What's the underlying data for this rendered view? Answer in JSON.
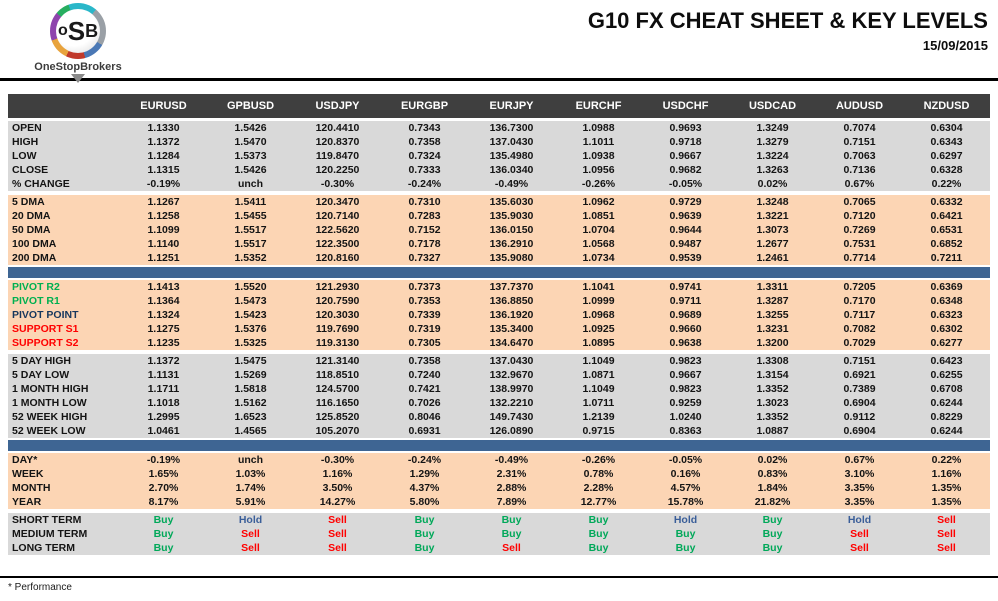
{
  "header": {
    "logo": {
      "circle_o": "o",
      "circle_s": "S",
      "circle_b": "B",
      "brand": "OneStopBrokers"
    },
    "title": "G10 FX CHEAT SHEET & KEY LEVELS",
    "date": "15/09/2015"
  },
  "colors": {
    "header_dark": "#3f3f3f",
    "gray_band": "#d9d9d9",
    "peach_band": "#fcd5b4",
    "blue_bar": "#3e6593",
    "pivot_green": "#00b050",
    "pivot_navy": "#17375d",
    "support_red": "#ff0000",
    "buy_green": "#00a859",
    "sell_red": "#ff0000",
    "hold_blue": "#3a5e99"
  },
  "table": {
    "columns": [
      "EURUSD",
      "GPBUSD",
      "USDJPY",
      "EURGBP",
      "EURJPY",
      "EURCHF",
      "USDCHF",
      "USDCAD",
      "AUDUSD",
      "NZDUSD"
    ],
    "sections": [
      {
        "id": "ohlc",
        "bg": "gray",
        "rows": [
          {
            "label": "OPEN",
            "values": [
              "1.1330",
              "1.5426",
              "120.4410",
              "0.7343",
              "136.7300",
              "1.0988",
              "0.9693",
              "1.3249",
              "0.7074",
              "0.6304"
            ]
          },
          {
            "label": "HIGH",
            "values": [
              "1.1372",
              "1.5470",
              "120.8370",
              "0.7358",
              "137.0430",
              "1.1011",
              "0.9718",
              "1.3279",
              "0.7151",
              "0.6343"
            ]
          },
          {
            "label": "LOW",
            "values": [
              "1.1284",
              "1.5373",
              "119.8470",
              "0.7324",
              "135.4980",
              "1.0938",
              "0.9667",
              "1.3224",
              "0.7063",
              "0.6297"
            ]
          },
          {
            "label": "CLOSE",
            "values": [
              "1.1315",
              "1.5426",
              "120.2250",
              "0.7333",
              "136.0340",
              "1.0956",
              "0.9682",
              "1.3263",
              "0.7136",
              "0.6328"
            ]
          },
          {
            "label": "% CHANGE",
            "values": [
              "-0.19%",
              "unch",
              "-0.30%",
              "-0.24%",
              "-0.49%",
              "-0.26%",
              "-0.05%",
              "0.02%",
              "0.67%",
              "0.22%"
            ]
          }
        ]
      },
      {
        "id": "dma",
        "bg": "peach",
        "rows": [
          {
            "label": "5 DMA",
            "values": [
              "1.1267",
              "1.5411",
              "120.3470",
              "0.7310",
              "135.6030",
              "1.0962",
              "0.9729",
              "1.3248",
              "0.7065",
              "0.6332"
            ]
          },
          {
            "label": "20 DMA",
            "values": [
              "1.1258",
              "1.5455",
              "120.7140",
              "0.7283",
              "135.9030",
              "1.0851",
              "0.9639",
              "1.3221",
              "0.7120",
              "0.6421"
            ]
          },
          {
            "label": "50 DMA",
            "values": [
              "1.1099",
              "1.5517",
              "122.5620",
              "0.7152",
              "136.0150",
              "1.0704",
              "0.9644",
              "1.3073",
              "0.7269",
              "0.6531"
            ]
          },
          {
            "label": "100 DMA",
            "values": [
              "1.1140",
              "1.5517",
              "122.3500",
              "0.7178",
              "136.2910",
              "1.0568",
              "0.9487",
              "1.2677",
              "0.7531",
              "0.6852"
            ]
          },
          {
            "label": "200 DMA",
            "values": [
              "1.1251",
              "1.5352",
              "120.8160",
              "0.7327",
              "135.9080",
              "1.0734",
              "0.9539",
              "1.2461",
              "0.7714",
              "0.7211"
            ]
          }
        ]
      },
      {
        "id": "pivots",
        "bg": "peach",
        "separator_before": "blue",
        "rows": [
          {
            "label": "PIVOT R2",
            "label_color": "pivot_green",
            "values": [
              "1.1413",
              "1.5520",
              "121.2930",
              "0.7373",
              "137.7370",
              "1.1041",
              "0.9741",
              "1.3311",
              "0.7205",
              "0.6369"
            ]
          },
          {
            "label": "PIVOT R1",
            "label_color": "pivot_green",
            "values": [
              "1.1364",
              "1.5473",
              "120.7590",
              "0.7353",
              "136.8850",
              "1.0999",
              "0.9711",
              "1.3287",
              "0.7170",
              "0.6348"
            ]
          },
          {
            "label": "PIVOT POINT",
            "label_color": "pivot_navy",
            "values": [
              "1.1324",
              "1.5423",
              "120.3030",
              "0.7339",
              "136.1920",
              "1.0968",
              "0.9689",
              "1.3255",
              "0.7117",
              "0.6323"
            ]
          },
          {
            "label": "SUPPORT S1",
            "label_color": "support_red",
            "values": [
              "1.1275",
              "1.5376",
              "119.7690",
              "0.7319",
              "135.3400",
              "1.0925",
              "0.9660",
              "1.3231",
              "0.7082",
              "0.6302"
            ]
          },
          {
            "label": "SUPPORT S2",
            "label_color": "support_red",
            "values": [
              "1.1235",
              "1.5325",
              "119.3130",
              "0.7305",
              "134.6470",
              "1.0895",
              "0.9638",
              "1.3200",
              "0.7029",
              "0.6277"
            ]
          }
        ]
      },
      {
        "id": "ranges",
        "bg": "gray",
        "rows": [
          {
            "label": "5 DAY HIGH",
            "values": [
              "1.1372",
              "1.5475",
              "121.3140",
              "0.7358",
              "137.0430",
              "1.1049",
              "0.9823",
              "1.3308",
              "0.7151",
              "0.6423"
            ]
          },
          {
            "label": "5 DAY LOW",
            "values": [
              "1.1131",
              "1.5269",
              "118.8510",
              "0.7240",
              "132.9670",
              "1.0871",
              "0.9667",
              "1.3154",
              "0.6921",
              "0.6255"
            ]
          },
          {
            "label": "1 MONTH HIGH",
            "values": [
              "1.1711",
              "1.5818",
              "124.5700",
              "0.7421",
              "138.9970",
              "1.1049",
              "0.9823",
              "1.3352",
              "0.7389",
              "0.6708"
            ]
          },
          {
            "label": "1 MONTH LOW",
            "values": [
              "1.1018",
              "1.5162",
              "116.1650",
              "0.7026",
              "132.2210",
              "1.0711",
              "0.9259",
              "1.3023",
              "0.6904",
              "0.6244"
            ]
          },
          {
            "label": "52 WEEK HIGH",
            "values": [
              "1.2995",
              "1.6523",
              "125.8520",
              "0.8046",
              "149.7430",
              "1.2139",
              "1.0240",
              "1.3352",
              "0.9112",
              "0.8229"
            ]
          },
          {
            "label": "52 WEEK LOW",
            "values": [
              "1.0461",
              "1.4565",
              "105.2070",
              "0.6931",
              "126.0890",
              "0.9715",
              "0.8363",
              "1.0887",
              "0.6904",
              "0.6244"
            ]
          }
        ]
      },
      {
        "id": "performance",
        "bg": "peach",
        "separator_before": "blue",
        "rows": [
          {
            "label": "DAY*",
            "values": [
              "-0.19%",
              "unch",
              "-0.30%",
              "-0.24%",
              "-0.49%",
              "-0.26%",
              "-0.05%",
              "0.02%",
              "0.67%",
              "0.22%"
            ]
          },
          {
            "label": "WEEK",
            "values": [
              "1.65%",
              "1.03%",
              "1.16%",
              "1.29%",
              "2.31%",
              "0.78%",
              "0.16%",
              "0.83%",
              "3.10%",
              "1.16%"
            ]
          },
          {
            "label": "MONTH",
            "values": [
              "2.70%",
              "1.74%",
              "3.50%",
              "4.37%",
              "2.88%",
              "2.28%",
              "4.57%",
              "1.84%",
              "3.35%",
              "1.35%"
            ]
          },
          {
            "label": "YEAR",
            "values": [
              "8.17%",
              "5.91%",
              "14.27%",
              "5.80%",
              "7.89%",
              "12.77%",
              "15.78%",
              "21.82%",
              "3.35%",
              "1.35%"
            ]
          }
        ]
      },
      {
        "id": "signals",
        "bg": "gray",
        "colored_values": true,
        "rows": [
          {
            "label": "SHORT TERM",
            "values": [
              "Buy",
              "Hold",
              "Sell",
              "Buy",
              "Buy",
              "Buy",
              "Hold",
              "Buy",
              "Hold",
              "Sell"
            ]
          },
          {
            "label": "MEDIUM TERM",
            "values": [
              "Buy",
              "Sell",
              "Sell",
              "Buy",
              "Buy",
              "Buy",
              "Buy",
              "Buy",
              "Sell",
              "Sell"
            ]
          },
          {
            "label": "LONG TERM",
            "values": [
              "Buy",
              "Sell",
              "Sell",
              "Buy",
              "Sell",
              "Buy",
              "Buy",
              "Buy",
              "Sell",
              "Sell"
            ]
          }
        ]
      }
    ]
  },
  "footer": {
    "note": "* Performance"
  }
}
